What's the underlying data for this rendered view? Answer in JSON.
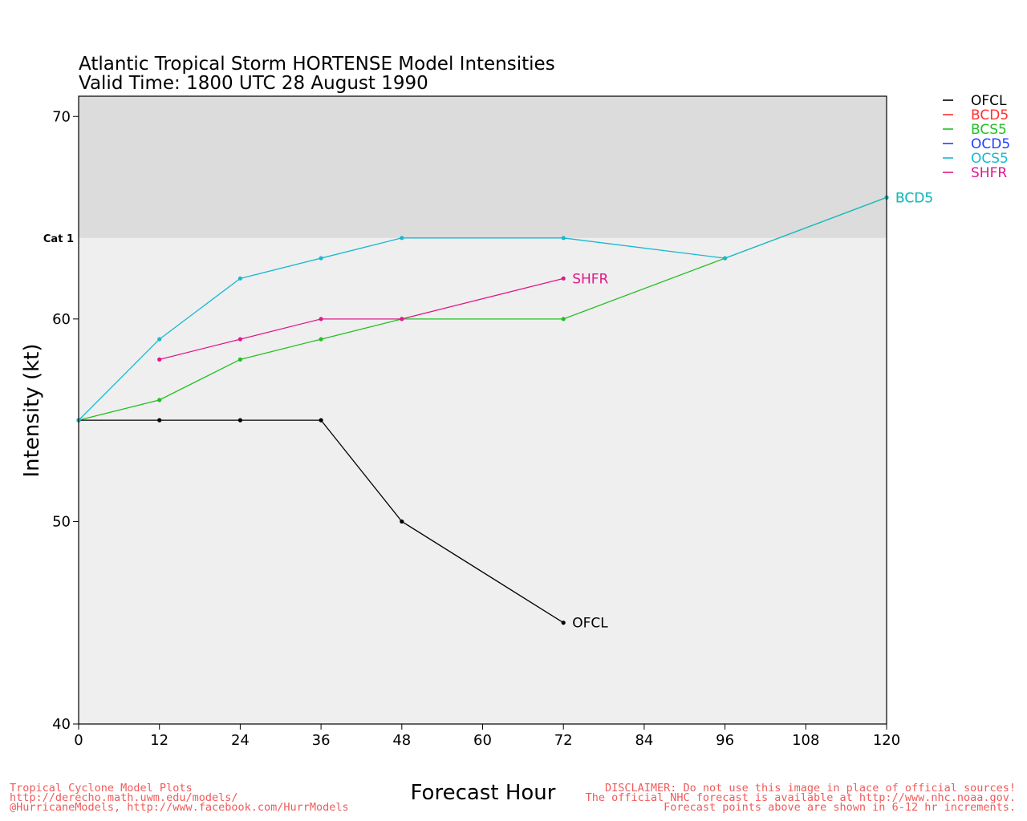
{
  "title_line1": "Atlantic Tropical Storm HORTENSE Model Intensities",
  "title_line2": "Valid Time: 1800 UTC 28 August 1990",
  "xlabel": "Forecast Hour",
  "ylabel": "Intensity (kt)",
  "category_label": "Cat 1",
  "footer_left": [
    "Tropical Cyclone Model Plots",
    "http://derecho.math.uwm.edu/models/",
    "@HurricaneModels, http://www.facebook.com/HurrModels"
  ],
  "footer_right": [
    "DISCLAIMER: Do not use this image in place of official sources!",
    "The official NHC forecast is available at http://www.nhc.noaa.gov.",
    "Forecast points above are shown in 6-12 hr increments."
  ],
  "colors": {
    "plot_bg": "#efefef",
    "cat1_band": "#dcdcdc"
  },
  "chart_data": {
    "type": "line",
    "xlim": [
      0,
      120
    ],
    "ylim": [
      40,
      71
    ],
    "x_ticks": [
      0,
      12,
      24,
      36,
      48,
      60,
      72,
      84,
      96,
      108,
      120
    ],
    "y_ticks": [
      40,
      50,
      60,
      70
    ],
    "category_threshold": 64,
    "grid": false,
    "legend_position": "top-right outside plot",
    "series": [
      {
        "name": "OFCL",
        "color": "#000000",
        "x": [
          0,
          12,
          24,
          36,
          48,
          72
        ],
        "y": [
          55,
          55,
          55,
          55,
          50,
          45
        ],
        "end_label": "OFCL"
      },
      {
        "name": "BCD5",
        "color": "#ff3030",
        "x": [],
        "y": [],
        "end_label": ""
      },
      {
        "name": "BCS5",
        "color": "#22c022",
        "x": [
          0,
          12,
          24,
          36,
          48,
          72,
          96,
          120
        ],
        "y": [
          55,
          56,
          58,
          59,
          60,
          60,
          63,
          66
        ],
        "end_label": "BCD5"
      },
      {
        "name": "OCD5",
        "color": "#2040ff",
        "x": [],
        "y": [],
        "end_label": ""
      },
      {
        "name": "OCS5",
        "color": "#18b8d0",
        "x": [
          0,
          12,
          24,
          36,
          48,
          72,
          96,
          120
        ],
        "y": [
          55,
          59,
          62,
          63,
          64,
          64,
          63,
          66
        ],
        "end_label": "BCD5"
      },
      {
        "name": "SHFR",
        "color": "#e0188a",
        "x": [
          12,
          24,
          36,
          48,
          72
        ],
        "y": [
          58,
          59,
          60,
          60,
          62
        ],
        "end_label": "SHFR"
      }
    ]
  }
}
